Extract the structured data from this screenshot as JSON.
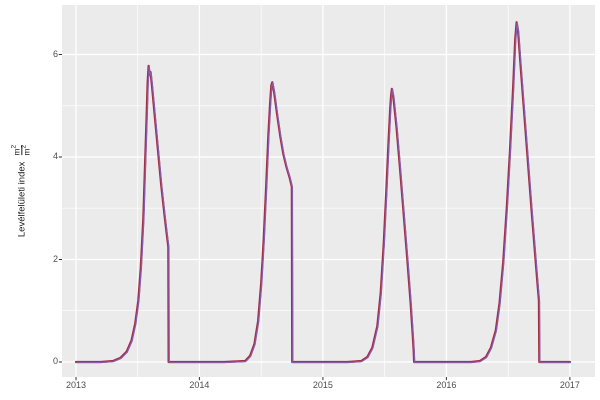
{
  "chart_data": {
    "type": "line",
    "title": "",
    "x_axis": {
      "label": "",
      "tick_labels": [
        "2013",
        "2014",
        "2015",
        "2016",
        "2017"
      ],
      "tick_values": [
        2013,
        2014,
        2015,
        2016,
        2017
      ],
      "minor_ticks": [
        2013.5,
        2014.5,
        2015.5,
        2016.5
      ],
      "domain": [
        2012.887,
        2017.203
      ]
    },
    "y_axis": {
      "title": "Levélfelületi index",
      "unit_num": {
        "base": "m",
        "exp": "2"
      },
      "unit_den": {
        "base": "m",
        "exp": "2"
      },
      "tick_labels": [
        "0",
        "2",
        "4",
        "6"
      ],
      "tick_values": [
        0,
        2,
        4,
        6
      ],
      "minor_ticks": [
        1,
        3,
        5
      ],
      "domain": [
        -0.293,
        6.966
      ]
    },
    "grid": {
      "major_color": "#ffffff",
      "minor_color": "#ffffff",
      "major_width": 1.3,
      "minor_width": 0.7,
      "grid_on": true
    },
    "panel_background": "#ebebeb",
    "figure_background": "#ffffff",
    "tick_label_color": "#4d4d4d",
    "tick_mark_color": "#333333",
    "legend": "none",
    "series": [
      {
        "name": "lai-line-red",
        "color": "#a22e44",
        "width": 2.2,
        "dx": 0,
        "dy": 0
      },
      {
        "name": "lai-line-purple",
        "color": "#8a5ba8",
        "width": 1.3,
        "dx": 0.6,
        "dy": 0.5
      }
    ],
    "points": [
      [
        2013.0,
        0
      ],
      [
        2013.2,
        0
      ],
      [
        2013.3,
        0.02
      ],
      [
        2013.36,
        0.08
      ],
      [
        2013.41,
        0.2
      ],
      [
        2013.45,
        0.42
      ],
      [
        2013.48,
        0.75
      ],
      [
        2013.505,
        1.2
      ],
      [
        2013.525,
        1.85
      ],
      [
        2013.545,
        2.8
      ],
      [
        2013.56,
        3.9
      ],
      [
        2013.572,
        4.8
      ],
      [
        2013.58,
        5.45
      ],
      [
        2013.588,
        5.78
      ],
      [
        2013.596,
        5.6
      ],
      [
        2013.604,
        5.66
      ],
      [
        2013.615,
        5.4
      ],
      [
        2013.64,
        4.75
      ],
      [
        2013.665,
        4.1
      ],
      [
        2013.69,
        3.45
      ],
      [
        2013.715,
        2.9
      ],
      [
        2013.735,
        2.5
      ],
      [
        2013.748,
        2.25
      ],
      [
        2013.75,
        0
      ],
      [
        2014.0,
        0
      ],
      [
        2014.2,
        0
      ],
      [
        2014.37,
        0.02
      ],
      [
        2014.41,
        0.12
      ],
      [
        2014.445,
        0.35
      ],
      [
        2014.475,
        0.8
      ],
      [
        2014.5,
        1.55
      ],
      [
        2014.52,
        2.4
      ],
      [
        2014.54,
        3.4
      ],
      [
        2014.558,
        4.45
      ],
      [
        2014.572,
        5.05
      ],
      [
        2014.582,
        5.4
      ],
      [
        2014.59,
        5.46
      ],
      [
        2014.605,
        5.25
      ],
      [
        2014.63,
        4.8
      ],
      [
        2014.655,
        4.4
      ],
      [
        2014.68,
        4.05
      ],
      [
        2014.705,
        3.8
      ],
      [
        2014.73,
        3.6
      ],
      [
        2014.748,
        3.42
      ],
      [
        2014.751,
        0
      ],
      [
        2015.0,
        0
      ],
      [
        2015.2,
        0
      ],
      [
        2015.31,
        0.02
      ],
      [
        2015.36,
        0.1
      ],
      [
        2015.4,
        0.28
      ],
      [
        2015.44,
        0.7
      ],
      [
        2015.468,
        1.35
      ],
      [
        2015.492,
        2.3
      ],
      [
        2015.512,
        3.3
      ],
      [
        2015.53,
        4.25
      ],
      [
        2015.545,
        4.95
      ],
      [
        2015.552,
        5.2
      ],
      [
        2015.558,
        5.33
      ],
      [
        2015.57,
        5.18
      ],
      [
        2015.595,
        4.6
      ],
      [
        2015.625,
        3.75
      ],
      [
        2015.655,
        2.85
      ],
      [
        2015.685,
        1.95
      ],
      [
        2015.71,
        1.15
      ],
      [
        2015.728,
        0.5
      ],
      [
        2015.735,
        0.2
      ],
      [
        2015.738,
        0
      ],
      [
        2016.0,
        0
      ],
      [
        2016.2,
        0
      ],
      [
        2016.27,
        0.02
      ],
      [
        2016.32,
        0.1
      ],
      [
        2016.36,
        0.28
      ],
      [
        2016.4,
        0.62
      ],
      [
        2016.43,
        1.15
      ],
      [
        2016.46,
        1.95
      ],
      [
        2016.49,
        3.05
      ],
      [
        2016.515,
        4.15
      ],
      [
        2016.54,
        5.35
      ],
      [
        2016.557,
        6.3
      ],
      [
        2016.568,
        6.63
      ],
      [
        2016.58,
        6.45
      ],
      [
        2016.6,
        5.8
      ],
      [
        2016.63,
        4.85
      ],
      [
        2016.66,
        3.9
      ],
      [
        2016.69,
        2.95
      ],
      [
        2016.718,
        2.1
      ],
      [
        2016.74,
        1.45
      ],
      [
        2016.749,
        1.2
      ],
      [
        2016.752,
        0
      ],
      [
        2017.0,
        0
      ]
    ]
  }
}
